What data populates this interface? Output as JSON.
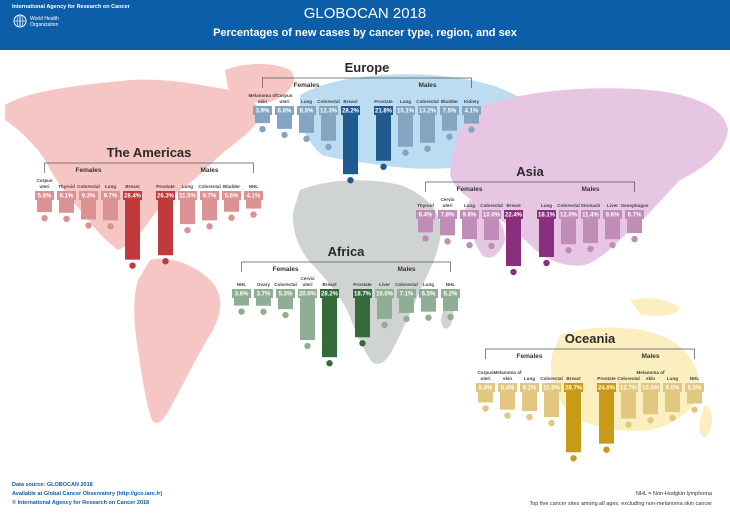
{
  "header": {
    "org": "International Agency for Research on Cancer",
    "who_line1": "World Health",
    "who_line2": "Organization",
    "title": "GLOBOCAN 2018",
    "subtitle": "Percentages of new cases by cancer type, region, and sex"
  },
  "labels": {
    "females": "Females",
    "males": "Males"
  },
  "footer": {
    "source": "Data source: GLOBOCAN 2018",
    "available": "Available at Global Cancer Observatory (http://gco.iarc.fr)",
    "copyright": "© International Agency for Research on Cancer 2018",
    "nhl_note": "NHL = Non-Hodgkin lymphoma",
    "scope_note": "Top five cancer sites among all ages, excluding non-melanoma skin cancer"
  },
  "chart_data": [
    {
      "type": "bar",
      "region": "Europe",
      "color": "#1f5b8e",
      "females": [
        {
          "site": "Melanoma of skin",
          "value": 3.9
        },
        {
          "site": "Corpus uteri",
          "value": 6.6
        },
        {
          "site": "Lung",
          "value": 8.5
        },
        {
          "site": "Colorectal",
          "value": 12.3
        },
        {
          "site": "Breast",
          "value": 28.2
        }
      ],
      "males": [
        {
          "site": "Prostate",
          "value": 21.8
        },
        {
          "site": "Lung",
          "value": 15.1
        },
        {
          "site": "Colorectal",
          "value": 13.2
        },
        {
          "site": "Bladder",
          "value": 7.5
        },
        {
          "site": "Kidney",
          "value": 4.1
        }
      ]
    },
    {
      "type": "bar",
      "region": "The Americas",
      "color": "#c0393b",
      "females": [
        {
          "site": "Corpus uteri",
          "value": 5.8
        },
        {
          "site": "Thyroid",
          "value": 6.1
        },
        {
          "site": "Colorectal",
          "value": 9.3
        },
        {
          "site": "Lung",
          "value": 9.7
        },
        {
          "site": "Breast",
          "value": 28.4
        }
      ],
      "males": [
        {
          "site": "Prostate",
          "value": 26.3
        },
        {
          "site": "Lung",
          "value": 11.5
        },
        {
          "site": "Colorectal",
          "value": 9.7
        },
        {
          "site": "Bladder",
          "value": 5.6
        },
        {
          "site": "NHL",
          "value": 4.1
        }
      ]
    },
    {
      "type": "bar",
      "region": "Asia",
      "color": "#8a2f7e",
      "females": [
        {
          "site": "Thyroid",
          "value": 6.4
        },
        {
          "site": "Cervix uteri",
          "value": 7.8
        },
        {
          "site": "Lung",
          "value": 9.6
        },
        {
          "site": "Colorectal",
          "value": 10.0
        },
        {
          "site": "Breast",
          "value": 22.4
        }
      ],
      "males": [
        {
          "site": "Lung",
          "value": 18.1
        },
        {
          "site": "Colorectal",
          "value": 12.0
        },
        {
          "site": "Stomach",
          "value": 11.4
        },
        {
          "site": "Liver",
          "value": 9.6
        },
        {
          "site": "Oesophagus",
          "value": 6.7
        }
      ]
    },
    {
      "type": "bar",
      "region": "Africa",
      "color": "#356b3a",
      "females": [
        {
          "site": "NHL",
          "value": 3.6
        },
        {
          "site": "Ovary",
          "value": 3.7
        },
        {
          "site": "Colorectal",
          "value": 5.3
        },
        {
          "site": "Cervix uteri",
          "value": 20.0
        },
        {
          "site": "Breast",
          "value": 28.2
        }
      ],
      "males": [
        {
          "site": "Prostate",
          "value": 18.7
        },
        {
          "site": "Liver",
          "value": 10.0
        },
        {
          "site": "Colorectal",
          "value": 7.1
        },
        {
          "site": "Lung",
          "value": 6.5
        },
        {
          "site": "NHL",
          "value": 6.2
        }
      ]
    },
    {
      "type": "bar",
      "region": "Oceania",
      "color": "#c99a16",
      "females": [
        {
          "site": "Corpus uteri",
          "value": 5.0
        },
        {
          "site": "Melanoma of skin",
          "value": 8.4
        },
        {
          "site": "Lung",
          "value": 9.1
        },
        {
          "site": "Colorectal",
          "value": 11.9
        },
        {
          "site": "Breast",
          "value": 28.7
        }
      ],
      "males": [
        {
          "site": "Prostate",
          "value": 24.6
        },
        {
          "site": "Colorectal",
          "value": 12.7
        },
        {
          "site": "Melanoma of skin",
          "value": 10.6
        },
        {
          "site": "Lung",
          "value": 9.5
        },
        {
          "site": "NHL",
          "value": 5.5
        }
      ]
    }
  ]
}
